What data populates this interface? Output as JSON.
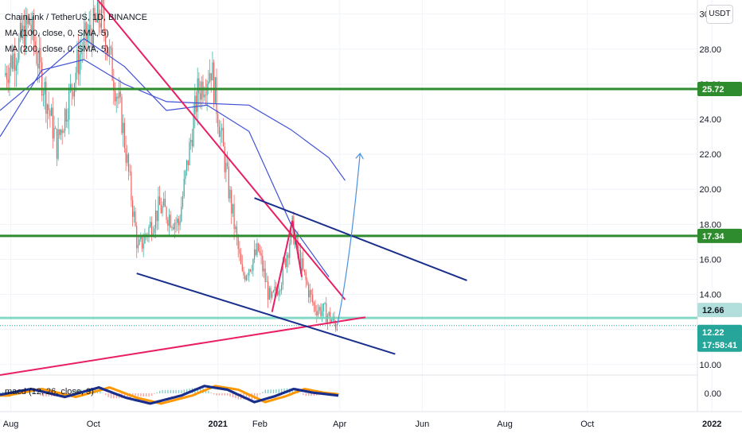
{
  "legend": {
    "title": "ChainLink / TetherUS, 1D, BINANCE",
    "ma100": "MA (100, close, 0, SMA, 5)",
    "ma200": "MA (200, close, 0, SMA, 5)",
    "macd": "macd (12, 26, close, 9)"
  },
  "unit_button": "USDT",
  "colors": {
    "up": "#26a69a",
    "down": "#ef5350",
    "ma": "#3f51d8",
    "level_green": "#2e8b2e",
    "level_teal": "#6fd2bd",
    "trend_pink": "#e91e63",
    "channel_navy": "#1a2e8c",
    "projection": "#4a90e2",
    "macd_line": "#1a2e8c",
    "signal_line": "#ff9800"
  },
  "chart_data": {
    "type": "candlestick",
    "pair": "ChainLink / TetherUS",
    "interval": "1D",
    "exchange": "BINANCE",
    "ylim": [
      9.4,
      30.8
    ],
    "y_ticks": [
      "30.00",
      "28.00",
      "26.00",
      "24.00",
      "22.00",
      "20.00",
      "18.00",
      "16.00",
      "14.00",
      "12.00",
      "10.00"
    ],
    "x_ticks": [
      "Aug",
      "Oct",
      "2021",
      "Feb",
      "Apr",
      "Jun",
      "Aug",
      "Oct",
      "2022"
    ],
    "price_labels": [
      {
        "text": "25.72",
        "value": 25.72,
        "color": "#2e8b2e"
      },
      {
        "text": "17.34",
        "value": 17.34,
        "color": "#2e8b2e"
      },
      {
        "text": "12.66",
        "value": 12.66,
        "color": "#b2dfdb"
      },
      {
        "text": "12.22",
        "value": 12.22,
        "color": "#26a69a"
      },
      {
        "text": "17:58:41",
        "value": 11.8,
        "color": "#26a69a"
      }
    ],
    "horizontal_levels": [
      25.72,
      17.34,
      12.66
    ],
    "candle_anchors": [
      {
        "date": "2020-07-28",
        "price": 26.5
      },
      {
        "date": "2020-08-16",
        "price": 29.5
      },
      {
        "date": "2020-09-05",
        "price": 22.5
      },
      {
        "date": "2020-09-23",
        "price": 28.0
      },
      {
        "date": "2020-10-08",
        "price": 30.0
      },
      {
        "date": "2020-10-23",
        "price": 24.0
      },
      {
        "date": "2020-11-04",
        "price": 16.5
      },
      {
        "date": "2020-11-20",
        "price": 19.0
      },
      {
        "date": "2020-12-04",
        "price": 18.0
      },
      {
        "date": "2020-12-18",
        "price": 25.5
      },
      {
        "date": "2020-12-28",
        "price": 27.0
      },
      {
        "date": "2021-01-10",
        "price": 20.0
      },
      {
        "date": "2021-01-20",
        "price": 15.0
      },
      {
        "date": "2021-02-01",
        "price": 16.5
      },
      {
        "date": "2021-02-10",
        "price": 13.5
      },
      {
        "date": "2021-02-18",
        "price": 15.0
      },
      {
        "date": "2021-02-26",
        "price": 17.8
      },
      {
        "date": "2021-03-06",
        "price": 15.2
      },
      {
        "date": "2021-03-14",
        "price": 13.3
      },
      {
        "date": "2021-03-22",
        "price": 13.0
      },
      {
        "date": "2021-03-31",
        "price": 12.2
      }
    ],
    "ma100": [
      {
        "date": "2020-07-24",
        "price": 24.5
      },
      {
        "date": "2020-08-24",
        "price": 26.5
      },
      {
        "date": "2020-09-24",
        "price": 28.6
      },
      {
        "date": "2020-10-24",
        "price": 27.0
      },
      {
        "date": "2020-11-24",
        "price": 24.5
      },
      {
        "date": "2020-12-24",
        "price": 24.8
      },
      {
        "date": "2021-01-24",
        "price": 23.3
      },
      {
        "date": "2021-02-24",
        "price": 18.0
      },
      {
        "date": "2021-03-24",
        "price": 15.0
      }
    ],
    "ma200": [
      {
        "date": "2020-07-24",
        "price": 23.0
      },
      {
        "date": "2020-08-24",
        "price": 26.8
      },
      {
        "date": "2020-09-24",
        "price": 27.4
      },
      {
        "date": "2020-10-24",
        "price": 26.0
      },
      {
        "date": "2020-11-24",
        "price": 25.0
      },
      {
        "date": "2020-12-24",
        "price": 24.9
      },
      {
        "date": "2021-01-24",
        "price": 24.8
      },
      {
        "date": "2021-02-24",
        "price": 23.4
      },
      {
        "date": "2021-03-24",
        "price": 21.8
      },
      {
        "date": "2021-04-05",
        "price": 20.5
      }
    ],
    "drawings": [
      {
        "kind": "trend",
        "color": "#e91e63",
        "from": {
          "date": "2020-09-30",
          "price": 31.2
        },
        "to": {
          "date": "2021-04-05",
          "price": 13.7
        }
      },
      {
        "kind": "trend",
        "color": "#e91e63",
        "from": {
          "date": "2020-07-24",
          "price": 9.4
        },
        "to": {
          "date": "2021-04-20",
          "price": 12.7
        }
      },
      {
        "kind": "trend",
        "color": "#1a2e8c",
        "from": {
          "date": "2021-01-28",
          "price": 19.5
        },
        "to": {
          "date": "2021-07-04",
          "price": 14.8
        }
      },
      {
        "kind": "trend",
        "color": "#1a2e8c",
        "from": {
          "date": "2020-11-02",
          "price": 15.2
        },
        "to": {
          "date": "2021-05-12",
          "price": 10.6
        }
      },
      {
        "kind": "path",
        "color": "#e91e63",
        "points": [
          {
            "date": "2021-02-10",
            "price": 13.0
          },
          {
            "date": "2021-02-25",
            "price": 18.2
          },
          {
            "date": "2021-03-04",
            "price": 15.0
          }
        ]
      },
      {
        "kind": "arrow",
        "color": "#4a90e2",
        "points": [
          {
            "date": "2021-03-30",
            "price": 12.2
          },
          {
            "date": "2021-04-16",
            "price": 22.0
          }
        ]
      }
    ],
    "macd": {
      "ylim": [
        -2.5,
        2.5
      ],
      "y_ticks": [
        "0.00"
      ],
      "macd_line": [
        {
          "date": "2020-07-24",
          "value": -0.2
        },
        {
          "date": "2020-08-16",
          "value": 0.6
        },
        {
          "date": "2020-09-10",
          "value": -0.5
        },
        {
          "date": "2020-10-05",
          "value": 0.8
        },
        {
          "date": "2020-10-25",
          "value": -0.6
        },
        {
          "date": "2020-11-12",
          "value": -1.4
        },
        {
          "date": "2020-12-05",
          "value": -0.3
        },
        {
          "date": "2020-12-22",
          "value": 1.0
        },
        {
          "date": "2021-01-08",
          "value": 0.5
        },
        {
          "date": "2021-01-28",
          "value": -1.2
        },
        {
          "date": "2021-02-12",
          "value": -0.4
        },
        {
          "date": "2021-02-26",
          "value": 0.6
        },
        {
          "date": "2021-03-12",
          "value": 0.1
        },
        {
          "date": "2021-03-31",
          "value": -0.3
        }
      ]
    }
  }
}
